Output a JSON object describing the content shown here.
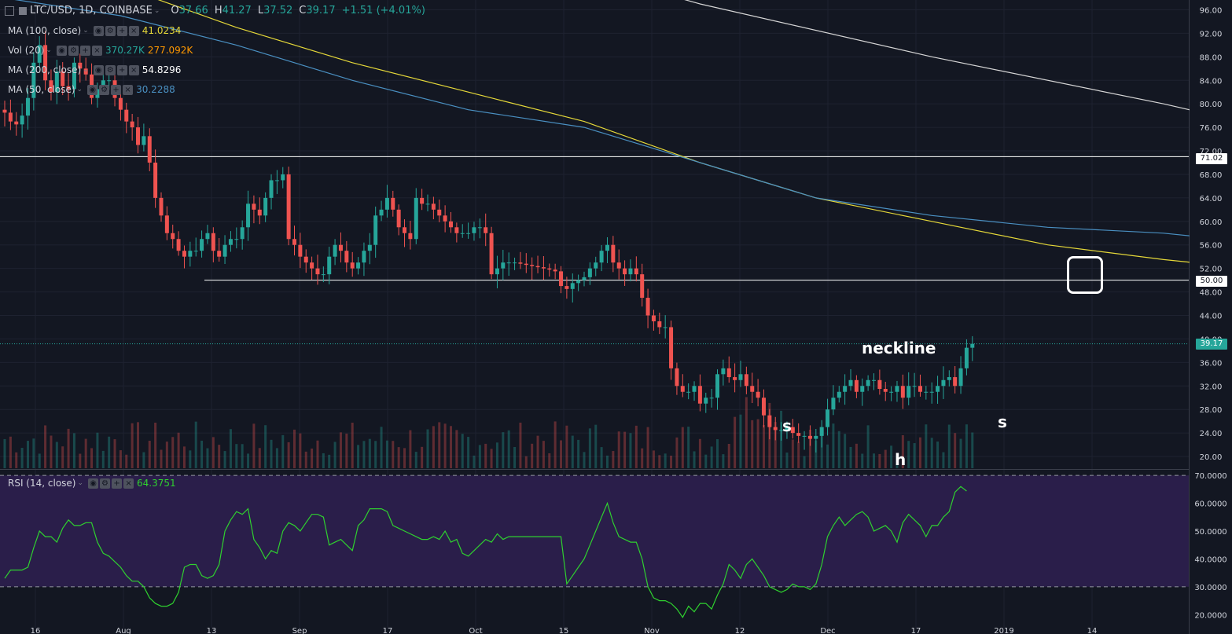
{
  "header": {
    "symbol": "LTC/USD, 1D, COINBASE",
    "o_label": "O",
    "open": "37.66",
    "h_label": "H",
    "high": "41.27",
    "l_label": "L",
    "low": "37.52",
    "c_label": "C",
    "close": "39.17",
    "change": "+1.51 (+4.01%)"
  },
  "indicators": [
    {
      "name": "MA (100, close)",
      "values": [
        "41.0234"
      ],
      "colors": [
        "#e5d839"
      ]
    },
    {
      "name": "Vol (20)",
      "values": [
        "370.27K",
        "277.092K"
      ],
      "colors": [
        "#26a69a",
        "#ff9800"
      ]
    },
    {
      "name": "MA (200, close)",
      "values": [
        "54.8296"
      ],
      "colors": [
        "#ffffff"
      ]
    },
    {
      "name": "MA (50, close)",
      "values": [
        "30.2288"
      ],
      "colors": [
        "#4a90c2"
      ]
    }
  ],
  "rsi_header": {
    "name": "RSI (14, close)",
    "value": "64.3751",
    "color": "#2fd12f"
  },
  "price_labels": {
    "level_71": "71.02",
    "level_50": "50.00",
    "last": "39.17"
  },
  "annotations": {
    "neckline": "neckline",
    "left_shoulder": "s",
    "head": "h",
    "right_shoulder": "s"
  },
  "colors": {
    "up": "#26a69a",
    "down": "#ef5350",
    "background": "#131722",
    "rsi_band": "#2a1e4a"
  },
  "chart_data": [
    {
      "type": "candlestick",
      "title": "LTC/USD, 1D, COINBASE",
      "price_axis": {
        "ticks": [
          "96.00",
          "92.00",
          "88.00",
          "84.00",
          "80.00",
          "76.00",
          "72.00",
          "68.00",
          "64.00",
          "60.00",
          "56.00",
          "52.00",
          "48.00",
          "44.00",
          "40.00",
          "36.00",
          "32.00",
          "28.00",
          "24.00",
          "20.00"
        ],
        "ylim": [
          18,
          97
        ]
      },
      "time_axis": {
        "ticks": [
          "16",
          "Aug",
          "13",
          "Sep",
          "17",
          "Oct",
          "15",
          "Nov",
          "12",
          "Dec",
          "17",
          "2019",
          "14"
        ]
      },
      "horizontal_levels": [
        71.02,
        50.0
      ],
      "closes": [
        78.5,
        77,
        76.5,
        78,
        81,
        87,
        90,
        84,
        82,
        85.5,
        83,
        82.5,
        87,
        86,
        85,
        81,
        82.5,
        84,
        84,
        81,
        79,
        77,
        76,
        73,
        74.5,
        70,
        64,
        61,
        58,
        57,
        55,
        54,
        55,
        55,
        57,
        58,
        55,
        54,
        56,
        57,
        57,
        59,
        63,
        62,
        61,
        64,
        67,
        67,
        68,
        57,
        56,
        54,
        53,
        52,
        51,
        51,
        54,
        56,
        55,
        53,
        52,
        53,
        55,
        56,
        61,
        62,
        64,
        62,
        59,
        58,
        57,
        64,
        63,
        63,
        62,
        61,
        60,
        59,
        58,
        58,
        58,
        59,
        59,
        58,
        51,
        52,
        53,
        53,
        53,
        52.8,
        52.6,
        52.4,
        52.2,
        52,
        51.8,
        51.5,
        49,
        48.5,
        49.5,
        50,
        50.5,
        52,
        53,
        55,
        56,
        53,
        52,
        51,
        52,
        51,
        47,
        44,
        43,
        42,
        42,
        35,
        32,
        31,
        31,
        32,
        29,
        30,
        30,
        34,
        35,
        33.5,
        33,
        34,
        32,
        31,
        30,
        27,
        25,
        24.5,
        24.5,
        25,
        24,
        23.5,
        23.5,
        23,
        23.5,
        25,
        28,
        30,
        31,
        32,
        33,
        31,
        32,
        33,
        33,
        31.5,
        31,
        31,
        32,
        30,
        32,
        32,
        31,
        31,
        31,
        32,
        33,
        33.5,
        32,
        35,
        38.5,
        39.17
      ],
      "ma_100_points": [
        [
          0,
          106
        ],
        [
          20,
          100
        ],
        [
          40,
          93
        ],
        [
          60,
          87
        ],
        [
          80,
          82
        ],
        [
          100,
          77
        ],
        [
          120,
          70
        ],
        [
          140,
          64
        ],
        [
          160,
          60
        ],
        [
          180,
          56
        ],
        [
          200,
          53.5
        ],
        [
          220,
          51.5
        ],
        [
          240,
          49.5
        ],
        [
          260,
          48
        ],
        [
          280,
          47
        ],
        [
          300,
          45.5
        ],
        [
          320,
          44
        ],
        [
          345,
          42
        ],
        [
          360,
          41
        ]
      ],
      "ma_200_points": [
        [
          0,
          130
        ],
        [
          40,
          120
        ],
        [
          80,
          108
        ],
        [
          120,
          97
        ],
        [
          160,
          88
        ],
        [
          200,
          80
        ],
        [
          240,
          71
        ],
        [
          280,
          64
        ],
        [
          320,
          59
        ],
        [
          360,
          55
        ]
      ],
      "ma_50_points": [
        [
          0,
          98
        ],
        [
          20,
          95
        ],
        [
          40,
          90
        ],
        [
          60,
          84
        ],
        [
          80,
          79
        ],
        [
          100,
          76
        ],
        [
          120,
          70
        ],
        [
          140,
          64
        ],
        [
          160,
          61
        ],
        [
          180,
          59
        ],
        [
          200,
          58
        ],
        [
          220,
          56
        ],
        [
          240,
          53
        ],
        [
          260,
          47
        ],
        [
          280,
          41
        ],
        [
          300,
          36
        ],
        [
          320,
          32
        ],
        [
          340,
          30.5
        ],
        [
          360,
          30.2
        ]
      ],
      "volume_series": {
        "name": "Vol (20)",
        "last": "370.27K",
        "ma": "277.092K"
      },
      "neckline": {
        "from": [
          250,
          35.5
        ],
        "to": [
          375,
          37
        ]
      },
      "support_line": {
        "from": [
          305,
          23
        ],
        "to": [
          385,
          37
        ]
      }
    },
    {
      "type": "line",
      "title": "RSI (14, close)",
      "ylim": [
        15,
        72
      ],
      "y_ticks": [
        "70.0000",
        "60.0000",
        "50.0000",
        "40.0000",
        "30.0000",
        "20.0000"
      ],
      "bands": [
        30,
        70
      ],
      "values": [
        33,
        36,
        36,
        36,
        37,
        44,
        50,
        48,
        48,
        46,
        51,
        54,
        52,
        52,
        53,
        53,
        46,
        42,
        41,
        39,
        37,
        34,
        32,
        32,
        30,
        26,
        24,
        23,
        23,
        24,
        28,
        37,
        38,
        38,
        34,
        33,
        34,
        38,
        50,
        54,
        57,
        56,
        58,
        47,
        44,
        40,
        43,
        42,
        50,
        53,
        52,
        50,
        53,
        56,
        56,
        55,
        45,
        46,
        47,
        45,
        43,
        52,
        54,
        58,
        58,
        58,
        57,
        52,
        51,
        50,
        49,
        48,
        47,
        47,
        48,
        47,
        50,
        46,
        47,
        42,
        41,
        43,
        45,
        47,
        46,
        49,
        47,
        48,
        48,
        48,
        48,
        48,
        48,
        48,
        48,
        48,
        48,
        31,
        34,
        37,
        40,
        45,
        50,
        55,
        60,
        53,
        48,
        47,
        46,
        46,
        40,
        30,
        26,
        25,
        25,
        24,
        22,
        19,
        23,
        21,
        24,
        24,
        22,
        27,
        31,
        38,
        36,
        33,
        38,
        40,
        37,
        34,
        30,
        29,
        28,
        29,
        31,
        30,
        30,
        29,
        31,
        38,
        48,
        52,
        55,
        52,
        54,
        56,
        57,
        55,
        50,
        51,
        52,
        50,
        46,
        53,
        56,
        54,
        52,
        48,
        52,
        52,
        55,
        57,
        64,
        66,
        64.38
      ]
    }
  ]
}
